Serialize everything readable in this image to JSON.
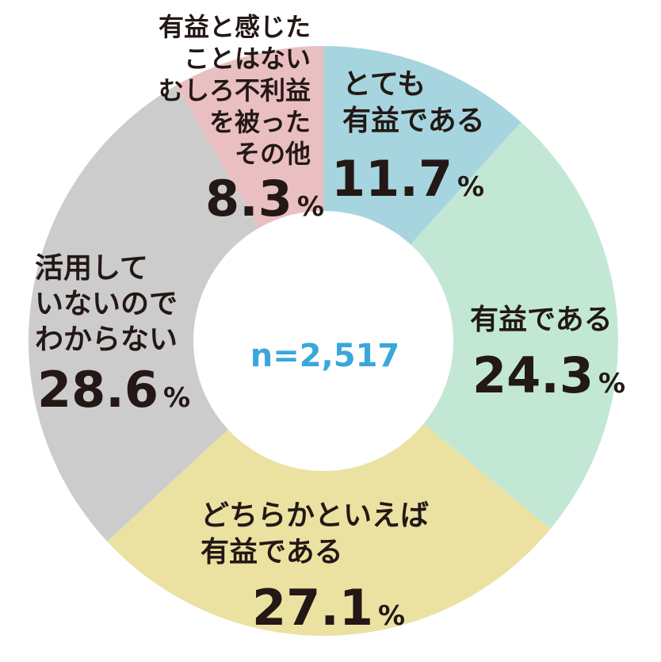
{
  "chart_data": {
    "type": "pie",
    "variant": "donut",
    "center_label": "n=2,517",
    "percent_sign": "%",
    "slices": [
      {
        "lines": [
          "とても",
          "有益である"
        ],
        "value": 11.7,
        "value_text": "11.7",
        "color": "#a6d5df"
      },
      {
        "lines": [
          "有益である"
        ],
        "value": 24.3,
        "value_text": "24.3",
        "color": "#c2e8d5"
      },
      {
        "lines": [
          "どちらかといえば",
          "有益である"
        ],
        "value": 27.1,
        "value_text": "27.1",
        "color": "#ebe2a2"
      },
      {
        "lines": [
          "活用して",
          "いないので",
          "わからない"
        ],
        "value": 28.6,
        "value_text": "28.6",
        "color": "#cccccc"
      },
      {
        "lines": [
          "有益と感じた",
          "ことはない",
          "むしろ不利益",
          "を被った",
          "その他"
        ],
        "value": 8.3,
        "value_text": "8.3",
        "color": "#eabfc1"
      }
    ]
  }
}
